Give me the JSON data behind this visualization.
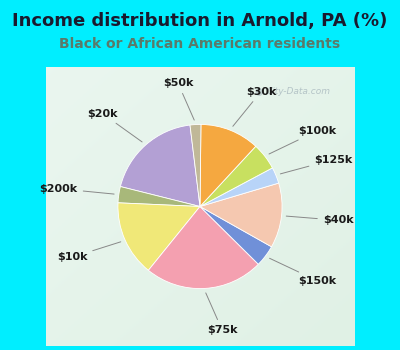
{
  "title": "Income distribution in Arnold, PA (%)",
  "subtitle": "Black or African American residents",
  "watermark": "City-Data.com",
  "labels": [
    "$20k",
    "$200k",
    "$10k",
    "$75k",
    "$150k",
    "$40k",
    "$125k",
    "$100k",
    "$30k",
    "$50k"
  ],
  "sizes": [
    18,
    3,
    14,
    22,
    4,
    12,
    3,
    5,
    11,
    2
  ],
  "colors": [
    "#b3a0d4",
    "#a8b87a",
    "#f0e878",
    "#f4a0b0",
    "#7090d8",
    "#f5c8b0",
    "#b8d4f8",
    "#c8e060",
    "#f5a840",
    "#c0b898"
  ],
  "bg_top": "#00eeff",
  "bg_chart_tl": "#e0f0e8",
  "bg_chart_br": "#c8e8d8",
  "title_color": "#1a1a2e",
  "subtitle_color": "#5a7a6a",
  "title_fontsize": 13,
  "subtitle_fontsize": 10,
  "label_fontsize": 8,
  "startangle": 97,
  "labeldistance": 1.28
}
